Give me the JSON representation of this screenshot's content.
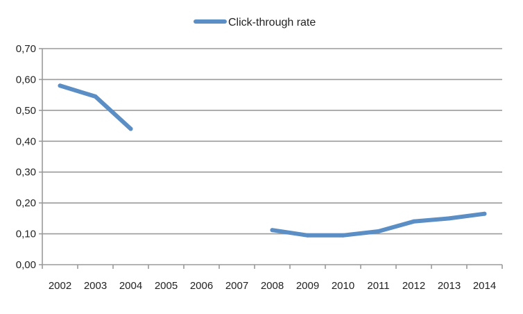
{
  "chart_data": {
    "type": "line",
    "title": "",
    "xlabel": "",
    "ylabel": "",
    "categories": [
      "2002",
      "2003",
      "2004",
      "2005",
      "2006",
      "2007",
      "2008",
      "2009",
      "2010",
      "2011",
      "2012",
      "2013",
      "2014"
    ],
    "y_tick_labels": [
      "0,00",
      "0,10",
      "0,20",
      "0,30",
      "0,40",
      "0,50",
      "0,60",
      "0,70"
    ],
    "y_ticks": [
      0,
      0.1,
      0.2,
      0.3,
      0.4,
      0.5,
      0.6,
      0.7
    ],
    "ylim": [
      0,
      0.7
    ],
    "grid": true,
    "legend_position": "top-center",
    "series": [
      {
        "name": "Click-through rate",
        "color": "#5b8ec4",
        "values": [
          0.58,
          0.545,
          0.44,
          null,
          null,
          null,
          0.112,
          0.095,
          0.095,
          0.108,
          0.14,
          0.15,
          0.165
        ]
      }
    ]
  }
}
